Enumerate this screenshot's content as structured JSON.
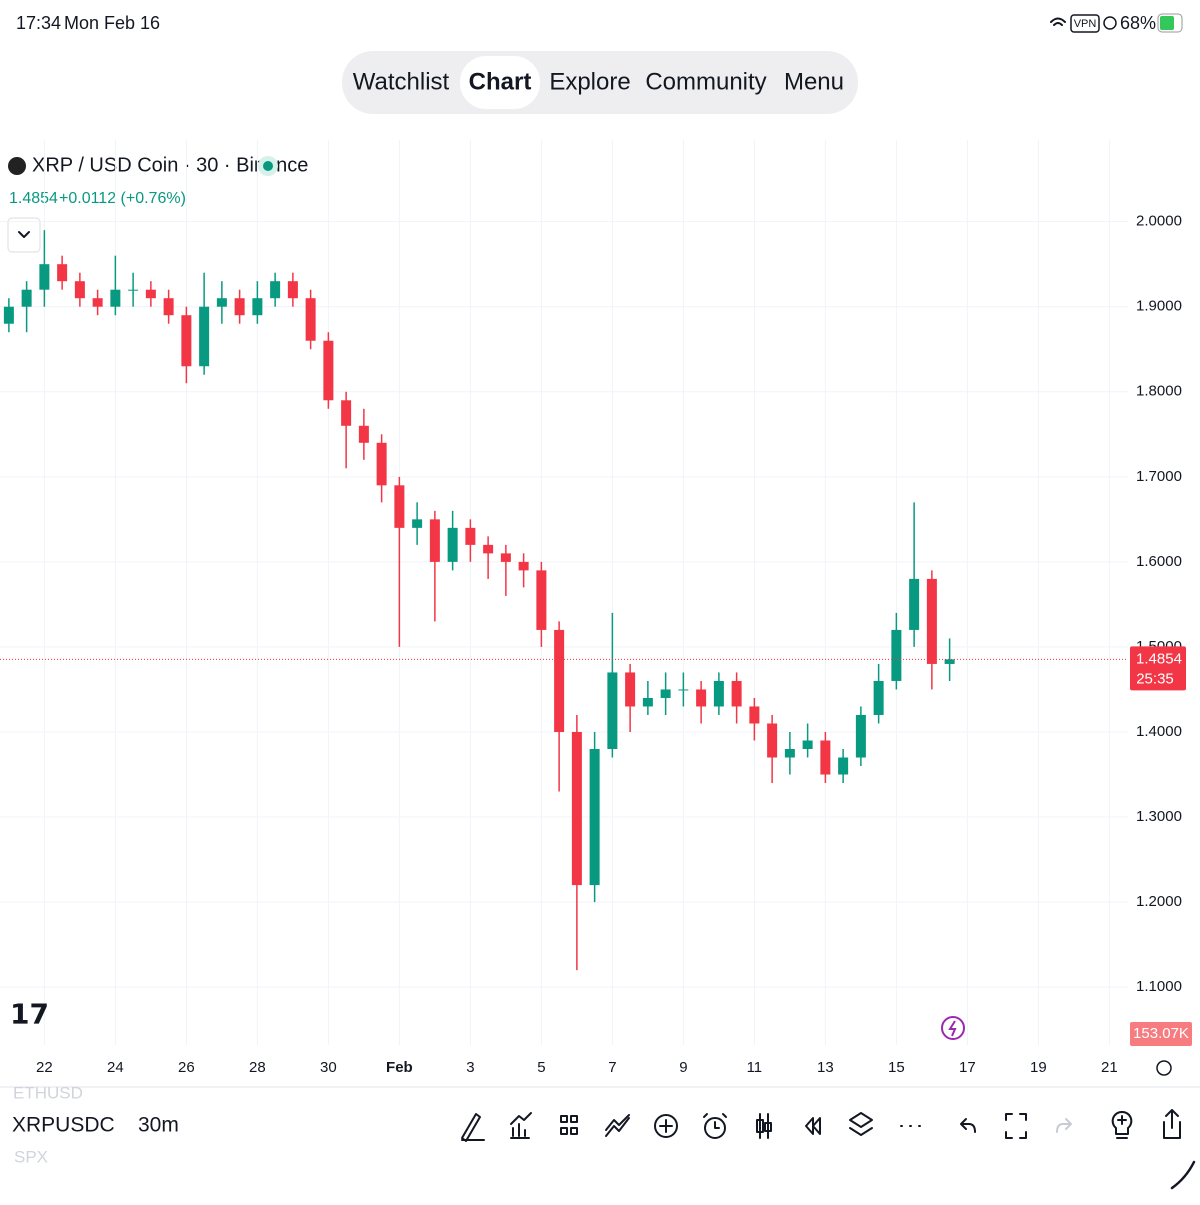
{
  "status_bar": {
    "time": "17:34",
    "date": "Mon Feb 16",
    "vpn": "VPN",
    "battery": "68%"
  },
  "nav": {
    "tabs": [
      "Watchlist",
      "Chart",
      "Explore",
      "Community",
      "Menu"
    ],
    "active": 1
  },
  "header": {
    "symbol": "XRP / USD Coin · 30 · Binance",
    "price": "1.4854",
    "change": "+0.0112 (+0.76%)"
  },
  "chart_data": {
    "type": "candlestick",
    "categories": [
      null,
      null,
      "22",
      null,
      null,
      null,
      "24",
      null,
      null,
      null,
      "26",
      null,
      null,
      null,
      "28",
      null,
      null,
      null,
      "30",
      null,
      null,
      null,
      "Feb",
      null,
      null,
      null,
      "3",
      null,
      null,
      null,
      "5",
      null,
      null,
      null,
      "7",
      null,
      null,
      null,
      "9",
      null,
      null,
      null,
      "11",
      null,
      null,
      null,
      "13",
      null,
      null,
      null,
      "15",
      null,
      null,
      null,
      "17",
      null,
      null,
      null,
      "19",
      null,
      null,
      null,
      "21",
      null
    ],
    "open": [
      1.88,
      1.9,
      1.92,
      1.95,
      1.93,
      1.91,
      1.9,
      1.92,
      1.92,
      1.91,
      1.89,
      1.83,
      1.9,
      1.91,
      1.89,
      1.91,
      1.93,
      1.91,
      1.86,
      1.79,
      1.76,
      1.74,
      1.69,
      1.64,
      1.65,
      1.6,
      1.64,
      1.62,
      1.61,
      1.6,
      1.59,
      1.52,
      1.4,
      1.22,
      1.38,
      1.47,
      1.43,
      1.44,
      1.45,
      1.45,
      1.43,
      1.46,
      1.43,
      1.41,
      1.37,
      1.38,
      1.39,
      1.35,
      1.37,
      1.42,
      1.46,
      1.52,
      1.58,
      1.48,
      null,
      null,
      null,
      null,
      null,
      null,
      null,
      null,
      null,
      null
    ],
    "high": [
      1.91,
      1.93,
      1.99,
      1.96,
      1.94,
      1.92,
      1.96,
      1.94,
      1.93,
      1.92,
      1.9,
      1.94,
      1.93,
      1.92,
      1.93,
      1.94,
      1.94,
      1.92,
      1.87,
      1.8,
      1.78,
      1.75,
      1.7,
      1.67,
      1.66,
      1.66,
      1.65,
      1.63,
      1.62,
      1.61,
      1.6,
      1.53,
      1.42,
      1.4,
      1.54,
      1.48,
      1.46,
      1.47,
      1.47,
      1.46,
      1.47,
      1.47,
      1.44,
      1.42,
      1.4,
      1.41,
      1.4,
      1.38,
      1.43,
      1.48,
      1.54,
      1.67,
      1.59,
      1.51,
      null,
      null,
      null,
      null,
      null,
      null,
      null,
      null,
      null,
      null
    ],
    "low": [
      1.87,
      1.87,
      1.9,
      1.92,
      1.9,
      1.89,
      1.89,
      1.9,
      1.9,
      1.88,
      1.81,
      1.82,
      1.88,
      1.88,
      1.88,
      1.9,
      1.9,
      1.85,
      1.78,
      1.71,
      1.72,
      1.67,
      1.5,
      1.62,
      1.53,
      1.59,
      1.6,
      1.58,
      1.56,
      1.57,
      1.5,
      1.33,
      1.12,
      1.2,
      1.37,
      1.4,
      1.42,
      1.42,
      1.43,
      1.41,
      1.42,
      1.41,
      1.39,
      1.34,
      1.35,
      1.37,
      1.34,
      1.34,
      1.36,
      1.41,
      1.45,
      1.5,
      1.45,
      1.46,
      null,
      null,
      null,
      null,
      null,
      null,
      null,
      null,
      null,
      null
    ],
    "close": [
      1.9,
      1.92,
      1.95,
      1.93,
      1.91,
      1.9,
      1.92,
      1.92,
      1.91,
      1.89,
      1.83,
      1.9,
      1.91,
      1.89,
      1.91,
      1.93,
      1.91,
      1.86,
      1.79,
      1.76,
      1.74,
      1.69,
      1.64,
      1.65,
      1.6,
      1.64,
      1.62,
      1.61,
      1.6,
      1.59,
      1.52,
      1.4,
      1.22,
      1.38,
      1.47,
      1.43,
      1.44,
      1.45,
      1.45,
      1.43,
      1.46,
      1.43,
      1.41,
      1.37,
      1.38,
      1.39,
      1.35,
      1.37,
      1.42,
      1.46,
      1.52,
      1.58,
      1.48,
      1.4854,
      null,
      null,
      null,
      null,
      null,
      null,
      null,
      null,
      null,
      null
    ],
    "up_color": "#089981",
    "down_color": "#f23645",
    "ylim": [
      1.032,
      2.096
    ],
    "yticks": [
      {
        "value": 1.1,
        "label": "1.1000"
      },
      {
        "value": 1.2,
        "label": "1.2000"
      },
      {
        "value": 1.3,
        "label": "1.3000"
      },
      {
        "value": 1.4,
        "label": "1.4000"
      },
      {
        "value": 1.5,
        "label": "1.5000"
      },
      {
        "value": 1.6,
        "label": "1.6000"
      },
      {
        "value": 1.7,
        "label": "1.7000"
      },
      {
        "value": 1.8,
        "label": "1.8000"
      },
      {
        "value": 1.9,
        "label": "1.9000"
      },
      {
        "value": 2.0,
        "label": "2.0000"
      }
    ],
    "grid": true,
    "countdown": "25:35",
    "volume_label": "153.07K"
  },
  "toolbar": {
    "symbol_prev": "ETHUSD",
    "symbol": "XRPUSDC",
    "symbol_next": "SPX",
    "interval": "30m"
  }
}
